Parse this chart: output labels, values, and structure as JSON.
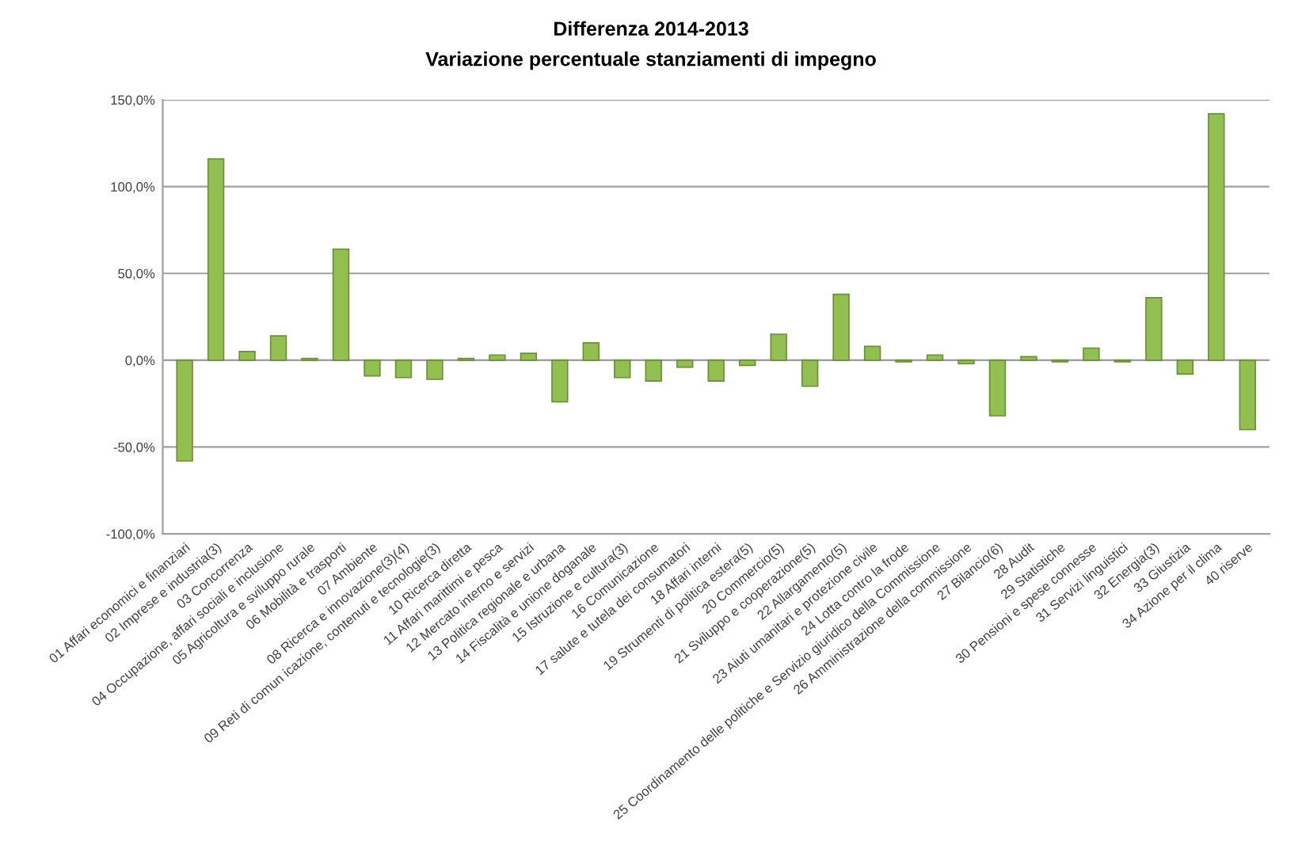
{
  "chart_data": {
    "type": "bar",
    "title": "Differenza 2014-2013",
    "subtitle": "Variazione percentuale stanziamenti di impegno",
    "categories": [
      "01 Affari economici e finanziari",
      "02 Imprese e industria(3)",
      "03 Concorrenza",
      "04 Occupazione, affari sociali e inclusione",
      "05 Agricoltura e sviluppo rurale",
      "06 Mobilità e trasporti",
      "07 Ambiente",
      "08 Ricerca e innovazione(3)(4)",
      "09 Reti di comun icazione, contenuti e tecnologie(3)",
      "10 Ricerca diretta",
      "11 Affari marittimi e pesca",
      "12 Mercato interno e servizi",
      "13 Politica regionale e urbana",
      "14 Fiscalità e unione doganale",
      "15 Istruzione e cultura(3)",
      "16 Comunicazione",
      "17 salute e tutela dei consumatori",
      "18 Affari interni",
      "19 Strumenti di politica estera(5)",
      "20 Commercio(5)",
      "21 Sviluppo e cooperazione(5)",
      "22 Allargamento(5)",
      "23 Aiuti umanitari e protezione civile",
      "24 Lotta contro la frode",
      "25 Coordinamento delle politiche e Servizio giuridico della Commissione",
      "26 Amministrazione della commissione",
      "27 Bilancio(6)",
      "28 Audit",
      "29 Statistiche",
      "30 Pensioni e spese connesse",
      "31 Servizi linguistici",
      "32 Energia(3)",
      "33 Giustizia",
      "34 Azione per il clima",
      "40 riserve"
    ],
    "values": [
      -58,
      116,
      5,
      14,
      1,
      64,
      -9,
      -10,
      -11,
      1,
      3,
      4,
      -24,
      10,
      -10,
      -12,
      -4,
      -12,
      -3,
      15,
      -15,
      38,
      8,
      -1,
      3,
      -2,
      -32,
      2,
      -1,
      7,
      -1,
      36,
      -8,
      142,
      -40
    ],
    "color": "#92c050",
    "ylim": [
      -100,
      150
    ],
    "yticks": [
      {
        "value": -100,
        "label": "-100,0%"
      },
      {
        "value": -50,
        "label": "-50,0%"
      },
      {
        "value": 0,
        "label": "0,0%"
      },
      {
        "value": 50,
        "label": "50,0%"
      },
      {
        "value": 100,
        "label": "100,0%"
      },
      {
        "value": 150,
        "label": "150,0%"
      }
    ],
    "grid": "y"
  }
}
